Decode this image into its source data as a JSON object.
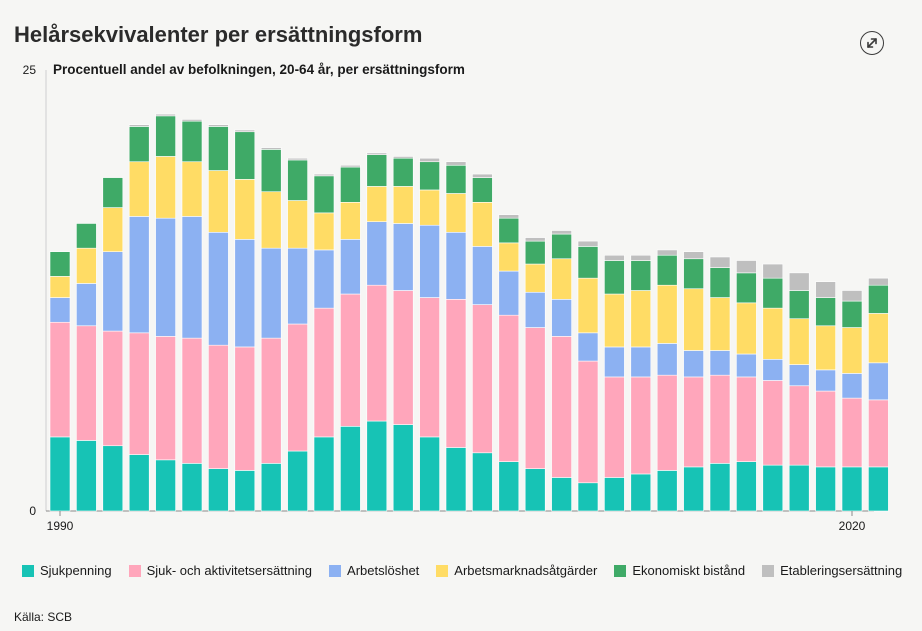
{
  "header": {
    "title": "Helårsekvivalenter per ersättningsform",
    "expand_icon": "expand-icon"
  },
  "source": "Källa: SCB",
  "chart_data": {
    "type": "bar",
    "stacked": true,
    "title": "Helårsekvivalenter per ersättningsform",
    "subtitle": "Procentuell andel av befolkningen, 20-64 år, per ersättningsform",
    "ylim": [
      0,
      25
    ],
    "yticks": [
      0,
      25
    ],
    "grid": false,
    "legend_position": "bottom",
    "x_tick_labels": [
      {
        "label": "1990",
        "year": 1990
      },
      {
        "label": "2020",
        "year": 2020
      }
    ],
    "categories": [
      1990,
      1991,
      1992,
      1993,
      1994,
      1995,
      1996,
      1997,
      1998,
      1999,
      2000,
      2001,
      2002,
      2003,
      2004,
      2005,
      2006,
      2007,
      2008,
      2009,
      2010,
      2011,
      2012,
      2013,
      2014,
      2015,
      2016,
      2017,
      2018,
      2019,
      2020,
      2021
    ],
    "series": [
      {
        "name": "Sjukpenning",
        "color": "#17c3b5",
        "values": [
          4.2,
          4.0,
          3.7,
          3.2,
          2.9,
          2.7,
          2.4,
          2.3,
          2.7,
          3.4,
          4.2,
          4.8,
          5.1,
          4.9,
          4.2,
          3.6,
          3.3,
          2.8,
          2.4,
          1.9,
          1.6,
          1.9,
          2.1,
          2.3,
          2.5,
          2.7,
          2.8,
          2.6,
          2.6,
          2.5,
          2.5,
          2.5
        ]
      },
      {
        "name": "Sjuk- och aktivitetsersättning",
        "color": "#ffa6bb",
        "values": [
          6.5,
          6.5,
          6.5,
          6.9,
          7.0,
          7.1,
          7.0,
          7.0,
          7.1,
          7.2,
          7.3,
          7.5,
          7.7,
          7.6,
          7.9,
          8.4,
          8.4,
          8.3,
          8.0,
          8.0,
          6.9,
          5.7,
          5.5,
          5.4,
          5.1,
          5.0,
          4.8,
          4.8,
          4.5,
          4.3,
          3.9,
          3.8
        ]
      },
      {
        "name": "Arbetslöshet",
        "color": "#8cb1f2",
        "values": [
          1.4,
          2.4,
          4.5,
          6.6,
          6.7,
          6.9,
          6.4,
          6.1,
          5.1,
          4.3,
          3.3,
          3.1,
          3.6,
          3.8,
          4.1,
          3.8,
          3.3,
          2.5,
          2.0,
          2.1,
          1.6,
          1.7,
          1.7,
          1.8,
          1.5,
          1.4,
          1.3,
          1.2,
          1.2,
          1.2,
          1.4,
          2.1
        ]
      },
      {
        "name": "Arbetsmarknadsåtgärder",
        "color": "#ffdc65",
        "values": [
          1.2,
          2.0,
          2.5,
          3.1,
          3.5,
          3.1,
          3.5,
          3.4,
          3.2,
          2.7,
          2.1,
          2.1,
          2.0,
          2.1,
          2.0,
          2.2,
          2.5,
          1.6,
          1.6,
          2.3,
          3.1,
          3.0,
          3.2,
          3.3,
          3.5,
          3.0,
          2.9,
          2.9,
          2.6,
          2.5,
          2.6,
          2.8
        ]
      },
      {
        "name": "Ekonomiskt bistånd",
        "color": "#3faa67",
        "values": [
          1.4,
          1.4,
          1.7,
          2.0,
          2.3,
          2.3,
          2.5,
          2.7,
          2.4,
          2.3,
          2.1,
          2.0,
          1.8,
          1.6,
          1.6,
          1.6,
          1.4,
          1.4,
          1.3,
          1.4,
          1.8,
          1.9,
          1.7,
          1.7,
          1.7,
          1.7,
          1.7,
          1.7,
          1.6,
          1.6,
          1.5,
          1.6
        ]
      },
      {
        "name": "Etableringsersättning",
        "color": "#bfbfbf",
        "values": [
          0,
          0,
          0,
          0.1,
          0.1,
          0.1,
          0.1,
          0.1,
          0.1,
          0.1,
          0.1,
          0.1,
          0.1,
          0.1,
          0.2,
          0.2,
          0.2,
          0.2,
          0.2,
          0.2,
          0.3,
          0.3,
          0.3,
          0.3,
          0.4,
          0.6,
          0.7,
          0.8,
          1.0,
          0.9,
          0.6,
          0.4
        ]
      }
    ]
  }
}
